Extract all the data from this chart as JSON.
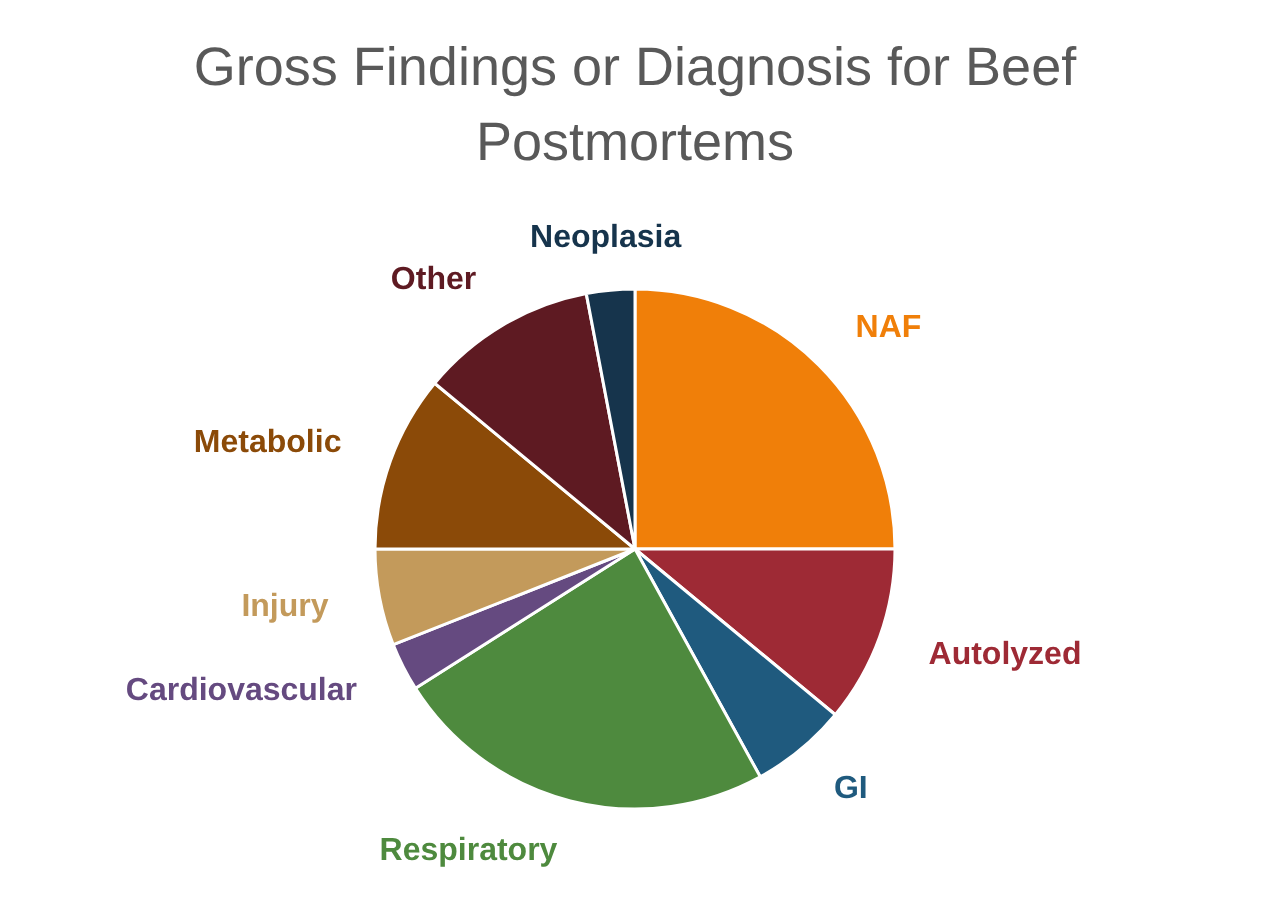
{
  "chart_data": {
    "type": "pie",
    "title": "Gross Findings or Diagnosis for Beef Postmortems",
    "categories": [
      "NAF",
      "Autolyzed",
      "GI",
      "Respiratory",
      "Cardiovascular",
      "Injury",
      "Metabolic",
      "Other",
      "Neoplasia"
    ],
    "values": [
      25,
      11,
      6,
      24,
      3,
      6,
      11,
      11,
      3
    ],
    "colors": [
      "#f07f09",
      "#9e2a35",
      "#1f5a7e",
      "#4e8a3e",
      "#654a80",
      "#c39a5b",
      "#8b4a08",
      "#5e1a22",
      "#16344c"
    ]
  }
}
